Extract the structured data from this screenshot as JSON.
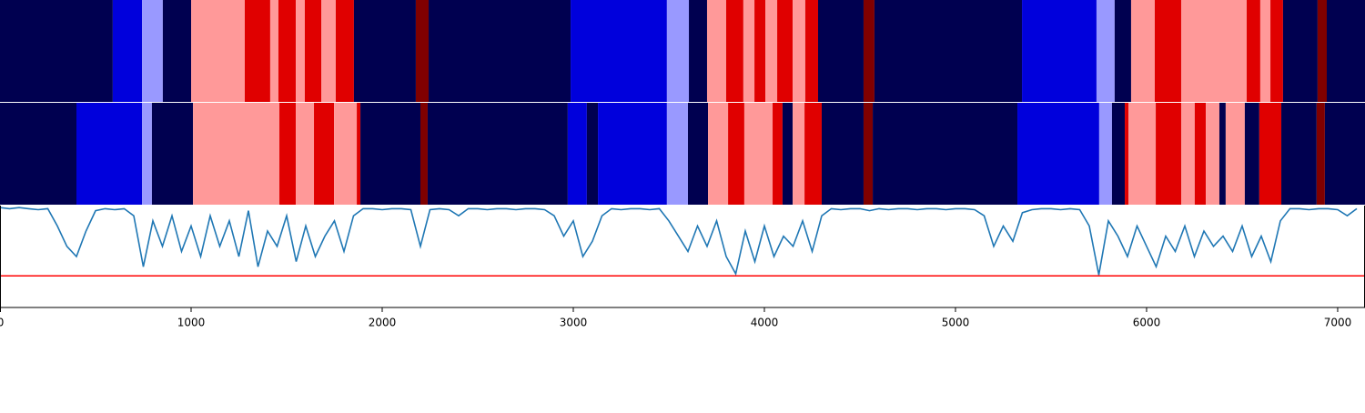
{
  "chart_data": [
    {
      "type": "segments",
      "xlim": [
        0,
        7143
      ],
      "bins": [
        0,
        590,
        743,
        852,
        1000,
        1281,
        1414,
        1457,
        1548,
        1595,
        1681,
        1757,
        1852,
        2176,
        2243,
        2986,
        3490,
        3605,
        3700,
        3800,
        3890,
        3948,
        4005,
        4067,
        4148,
        4214,
        4281,
        4519,
        4576,
        5348,
        5738,
        5833,
        5919,
        6043,
        6181,
        6524,
        6595,
        6648,
        6714,
        6895,
        6943,
        7143
      ],
      "colors": [
        "#000050",
        "#0000dc",
        "#9999ff",
        "#000050",
        "#ff9999",
        "#e00000",
        "#ff9999",
        "#e00000",
        "#ff9999",
        "#e00000",
        "#ff9999",
        "#e00000",
        "#000050",
        "#800000",
        "#000050",
        "#0000dc",
        "#9999ff",
        "#000050",
        "#ff9999",
        "#e00000",
        "#ff9999",
        "#e00000",
        "#ff9999",
        "#e00000",
        "#ff9999",
        "#e00000",
        "#000050",
        "#800000",
        "#000050",
        "#0000dc",
        "#9999ff",
        "#000050",
        "#ff9999",
        "#e00000",
        "#ff9999",
        "#e00000",
        "#ff9999",
        "#e00000",
        "#000050",
        "#800000",
        "#000050"
      ]
    },
    {
      "type": "segments",
      "xlim": [
        0,
        7143
      ],
      "bins": [
        0,
        400,
        743,
        795,
        1010,
        1462,
        1548,
        1643,
        1748,
        1867,
        1886,
        2200,
        2238,
        2971,
        3071,
        3129,
        3490,
        3600,
        3705,
        3810,
        3895,
        4043,
        4095,
        4148,
        4210,
        4300,
        4519,
        4567,
        5324,
        5752,
        5819,
        5886,
        5905,
        6048,
        6181,
        6252,
        6310,
        6381,
        6414,
        6514,
        6590,
        6705,
        6890,
        6933,
        7143
      ],
      "colors": [
        "#000050",
        "#0000dc",
        "#9999ff",
        "#000050",
        "#ff9999",
        "#e00000",
        "#ff9999",
        "#e00000",
        "#ff9999",
        "#e00000",
        "#000050",
        "#800000",
        "#000050",
        "#0000dc",
        "#000050",
        "#0000dc",
        "#9999ff",
        "#000050",
        "#ff9999",
        "#e00000",
        "#ff9999",
        "#e00000",
        "#000050",
        "#ff9999",
        "#e00000",
        "#000050",
        "#800000",
        "#000050",
        "#0000dc",
        "#9999ff",
        "#000050",
        "#e00000",
        "#ff9999",
        "#e00000",
        "#ff9999",
        "#e00000",
        "#ff9999",
        "#000050",
        "#ff9999",
        "#000050",
        "#e00000",
        "#000050",
        "#800000",
        "#000050"
      ]
    },
    {
      "type": "line",
      "color": "#1f77b4",
      "xlim": [
        0,
        7143
      ],
      "ylim": [
        0,
        1
      ],
      "xticks": [
        0,
        1000,
        2000,
        3000,
        4000,
        5000,
        6000,
        7000
      ],
      "threshold": 0.31,
      "threshold_color": "#ff0000",
      "x": [
        0,
        50,
        100,
        150,
        200,
        250,
        300,
        350,
        400,
        450,
        500,
        550,
        600,
        650,
        700,
        750,
        800,
        850,
        900,
        950,
        1000,
        1050,
        1100,
        1150,
        1200,
        1250,
        1300,
        1350,
        1400,
        1450,
        1500,
        1550,
        1600,
        1650,
        1700,
        1750,
        1800,
        1850,
        1900,
        1950,
        2000,
        2050,
        2100,
        2150,
        2200,
        2250,
        2300,
        2350,
        2400,
        2450,
        2500,
        2550,
        2600,
        2650,
        2700,
        2750,
        2800,
        2850,
        2900,
        2950,
        3000,
        3050,
        3100,
        3150,
        3200,
        3250,
        3300,
        3350,
        3400,
        3450,
        3500,
        3550,
        3600,
        3650,
        3700,
        3750,
        3800,
        3850,
        3900,
        3950,
        4000,
        4050,
        4100,
        4150,
        4200,
        4250,
        4300,
        4350,
        4400,
        4450,
        4500,
        4550,
        4600,
        4650,
        4700,
        4750,
        4800,
        4850,
        4900,
        4950,
        5000,
        5050,
        5100,
        5150,
        5200,
        5250,
        5300,
        5350,
        5400,
        5450,
        5500,
        5550,
        5600,
        5650,
        5700,
        5750,
        5800,
        5850,
        5900,
        5950,
        6000,
        6050,
        6100,
        6150,
        6200,
        6250,
        6300,
        6350,
        6400,
        6450,
        6500,
        6550,
        6600,
        6650,
        6700,
        6750,
        6800,
        6850,
        6900,
        6950,
        7000,
        7050,
        7100
      ],
      "values": [
        0.98,
        0.97,
        0.98,
        0.97,
        0.96,
        0.97,
        0.8,
        0.6,
        0.5,
        0.75,
        0.95,
        0.97,
        0.96,
        0.97,
        0.9,
        0.4,
        0.85,
        0.6,
        0.9,
        0.55,
        0.8,
        0.5,
        0.9,
        0.6,
        0.85,
        0.5,
        0.95,
        0.4,
        0.75,
        0.6,
        0.9,
        0.45,
        0.8,
        0.5,
        0.7,
        0.85,
        0.55,
        0.9,
        0.97,
        0.97,
        0.96,
        0.97,
        0.97,
        0.96,
        0.6,
        0.96,
        0.97,
        0.96,
        0.9,
        0.97,
        0.97,
        0.96,
        0.97,
        0.97,
        0.96,
        0.97,
        0.97,
        0.96,
        0.9,
        0.7,
        0.85,
        0.5,
        0.65,
        0.9,
        0.97,
        0.96,
        0.97,
        0.97,
        0.96,
        0.97,
        0.85,
        0.7,
        0.55,
        0.8,
        0.6,
        0.85,
        0.5,
        0.33,
        0.75,
        0.45,
        0.8,
        0.5,
        0.7,
        0.6,
        0.85,
        0.55,
        0.9,
        0.97,
        0.96,
        0.97,
        0.97,
        0.95,
        0.97,
        0.96,
        0.97,
        0.97,
        0.96,
        0.97,
        0.97,
        0.96,
        0.97,
        0.97,
        0.96,
        0.9,
        0.6,
        0.8,
        0.65,
        0.93,
        0.96,
        0.97,
        0.97,
        0.96,
        0.97,
        0.96,
        0.8,
        0.32,
        0.85,
        0.7,
        0.5,
        0.8,
        0.6,
        0.4,
        0.7,
        0.55,
        0.8,
        0.5,
        0.75,
        0.6,
        0.7,
        0.55,
        0.8,
        0.5,
        0.7,
        0.45,
        0.85,
        0.97,
        0.97,
        0.96,
        0.97,
        0.97,
        0.96,
        0.9,
        0.97
      ]
    }
  ]
}
